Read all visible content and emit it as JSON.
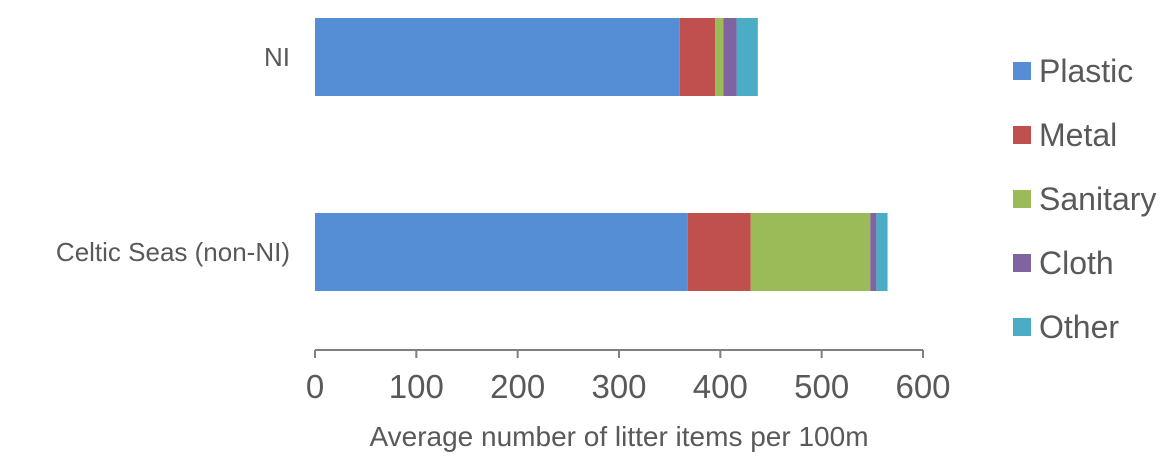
{
  "chart_data": {
    "type": "bar",
    "orientation": "horizontal",
    "stacked": true,
    "title": "",
    "xlabel": "Average number of litter items per 100m",
    "ylabel": "",
    "xlim": [
      0,
      600
    ],
    "xticks": [
      "0",
      "100",
      "200",
      "300",
      "400",
      "500",
      "600"
    ],
    "categories": [
      "NI",
      "Celtic Seas (non-NI)"
    ],
    "series": [
      {
        "name": "Plastic",
        "color": "#558ED5",
        "values": [
          360,
          368
        ]
      },
      {
        "name": "Metal",
        "color": "#C0504D",
        "values": [
          35,
          62
        ]
      },
      {
        "name": "Sanitary",
        "color": "#9BBB59",
        "values": [
          8,
          118
        ]
      },
      {
        "name": "Cloth",
        "color": "#8064A2",
        "values": [
          13,
          6
        ]
      },
      {
        "name": "Other",
        "color": "#4BACC6",
        "values": [
          21,
          11
        ]
      }
    ],
    "grid": false,
    "legend_position": "right"
  }
}
